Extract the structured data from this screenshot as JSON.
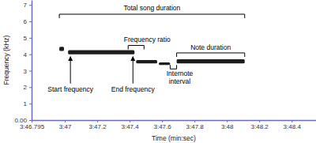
{
  "chart_data": {
    "type": "spectrogram",
    "x_label": "Time (min:sec)",
    "y_label": "Frequency (kHz)",
    "xlim": [
      226.795,
      228.55
    ],
    "xticks": [
      {
        "value": 226.795,
        "label": "3:46.795"
      },
      {
        "value": 227,
        "label": "3:47"
      },
      {
        "value": 227.2,
        "label": "3:47.2"
      },
      {
        "value": 227.4,
        "label": "3:47.4"
      },
      {
        "value": 227.6,
        "label": "3:47.6"
      },
      {
        "value": 227.8,
        "label": "3:47.8"
      },
      {
        "value": 228,
        "label": "3:48"
      },
      {
        "value": 228.2,
        "label": "3:48.2"
      },
      {
        "value": 228.4,
        "label": "3:48.4"
      }
    ],
    "ylim": [
      0,
      7.3
    ],
    "yticks": [
      {
        "value": 0,
        "label": "0.00"
      },
      1,
      2,
      3,
      4,
      5,
      6,
      7
    ],
    "color": "#1c1c1c",
    "notes": [
      {
        "start": 226.966,
        "end": 226.995,
        "low": 4.2,
        "high": 4.45
      },
      {
        "start": 227.02,
        "end": 227.43,
        "low": 4.0,
        "high": 4.25
      },
      {
        "start": 227.44,
        "end": 227.57,
        "low": 3.45,
        "high": 3.65
      },
      {
        "start": 227.58,
        "end": 227.65,
        "low": 3.35,
        "high": 3.5
      },
      {
        "start": 227.69,
        "end": 228.11,
        "low": 3.45,
        "high": 3.7
      }
    ],
    "annotations": [
      "Total song duration",
      "Frequency ratio",
      "Start frequency",
      "End frequency",
      "Internote interval",
      "Note duration"
    ]
  }
}
